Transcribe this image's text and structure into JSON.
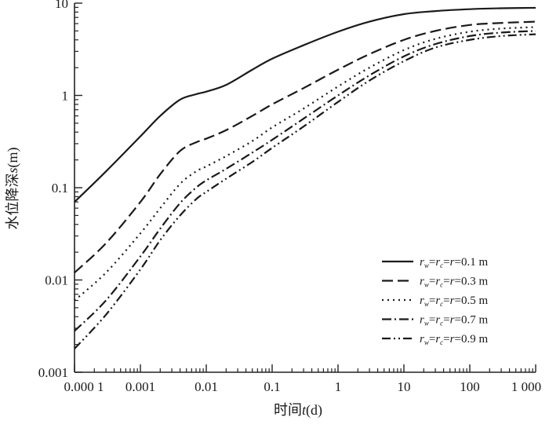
{
  "chart_data": {
    "type": "line",
    "xlabel_prefix": "时间",
    "xlabel_var": "t",
    "xlabel_unit": "(d)",
    "ylabel_prefix": "水位降深",
    "ylabel_var": "s",
    "ylabel_unit": "(m)",
    "x_scale": "log",
    "y_scale": "log",
    "xlim": [
      0.0001,
      1000
    ],
    "ylim": [
      0.001,
      10
    ],
    "grid": false,
    "legend_position": "bottom-right",
    "x_ticks": [
      {
        "value": 0.0001,
        "label": "0.000 1"
      },
      {
        "value": 0.001,
        "label": "0.001"
      },
      {
        "value": 0.01,
        "label": "0.01"
      },
      {
        "value": 0.1,
        "label": "0.1"
      },
      {
        "value": 1,
        "label": "1"
      },
      {
        "value": 10,
        "label": "10"
      },
      {
        "value": 100,
        "label": "100"
      },
      {
        "value": 1000,
        "label": "1 000"
      }
    ],
    "y_ticks": [
      {
        "value": 0.001,
        "label": "0.001"
      },
      {
        "value": 0.01,
        "label": "0.01"
      },
      {
        "value": 0.1,
        "label": "0.1"
      },
      {
        "value": 1,
        "label": "1"
      },
      {
        "value": 10,
        "label": "10"
      }
    ],
    "series": [
      {
        "name": "r_w=r_c=r=0.1 m",
        "legend_value": "0.1 m",
        "dash": "solid",
        "x": [
          0.0001,
          0.0003,
          0.001,
          0.002,
          0.004,
          0.007,
          0.01,
          0.02,
          0.05,
          0.1,
          0.3,
          1,
          3,
          10,
          30,
          100,
          300,
          1000
        ],
        "y": [
          0.07,
          0.15,
          0.36,
          0.6,
          0.9,
          1.03,
          1.1,
          1.3,
          1.9,
          2.5,
          3.5,
          4.9,
          6.3,
          7.6,
          8.2,
          8.6,
          8.8,
          8.9
        ]
      },
      {
        "name": "r_w=r_c=r=0.3 m",
        "legend_value": "0.3 m",
        "dash": "dash",
        "x": [
          0.0001,
          0.0003,
          0.001,
          0.002,
          0.004,
          0.007,
          0.01,
          0.02,
          0.05,
          0.1,
          0.3,
          1,
          3,
          10,
          30,
          100,
          300,
          1000
        ],
        "y": [
          0.012,
          0.025,
          0.07,
          0.14,
          0.25,
          0.31,
          0.34,
          0.42,
          0.6,
          0.8,
          1.2,
          1.9,
          2.8,
          4.0,
          5.0,
          5.8,
          6.1,
          6.3
        ]
      },
      {
        "name": "r_w=r_c=r=0.5 m",
        "legend_value": "0.5 m",
        "dash": "dot",
        "x": [
          0.0001,
          0.0003,
          0.001,
          0.002,
          0.004,
          0.007,
          0.01,
          0.02,
          0.05,
          0.1,
          0.3,
          1,
          3,
          10,
          30,
          100,
          300,
          1000
        ],
        "y": [
          0.006,
          0.012,
          0.032,
          0.06,
          0.11,
          0.15,
          0.17,
          0.22,
          0.32,
          0.45,
          0.72,
          1.25,
          2.0,
          3.1,
          4.1,
          4.9,
          5.3,
          5.5
        ]
      },
      {
        "name": "r_w=r_c=r=0.7 m",
        "legend_value": "0.7 m",
        "dash": "dashdot",
        "x": [
          0.0001,
          0.0003,
          0.001,
          0.002,
          0.004,
          0.007,
          0.01,
          0.02,
          0.05,
          0.1,
          0.3,
          1,
          3,
          10,
          30,
          100,
          300,
          1000
        ],
        "y": [
          0.0028,
          0.006,
          0.018,
          0.036,
          0.068,
          0.1,
          0.12,
          0.16,
          0.24,
          0.33,
          0.56,
          1.0,
          1.65,
          2.65,
          3.6,
          4.4,
          4.8,
          5.0
        ]
      },
      {
        "name": "r_w=r_c=r=0.9 m",
        "legend_value": "0.9 m",
        "dash": "dashdotdot",
        "x": [
          0.0001,
          0.0003,
          0.001,
          0.002,
          0.004,
          0.007,
          0.01,
          0.02,
          0.05,
          0.1,
          0.3,
          1,
          3,
          10,
          30,
          100,
          300,
          1000
        ],
        "y": [
          0.0018,
          0.0042,
          0.013,
          0.027,
          0.05,
          0.075,
          0.09,
          0.125,
          0.19,
          0.27,
          0.46,
          0.85,
          1.45,
          2.35,
          3.3,
          4.0,
          4.4,
          4.6
        ]
      }
    ]
  }
}
